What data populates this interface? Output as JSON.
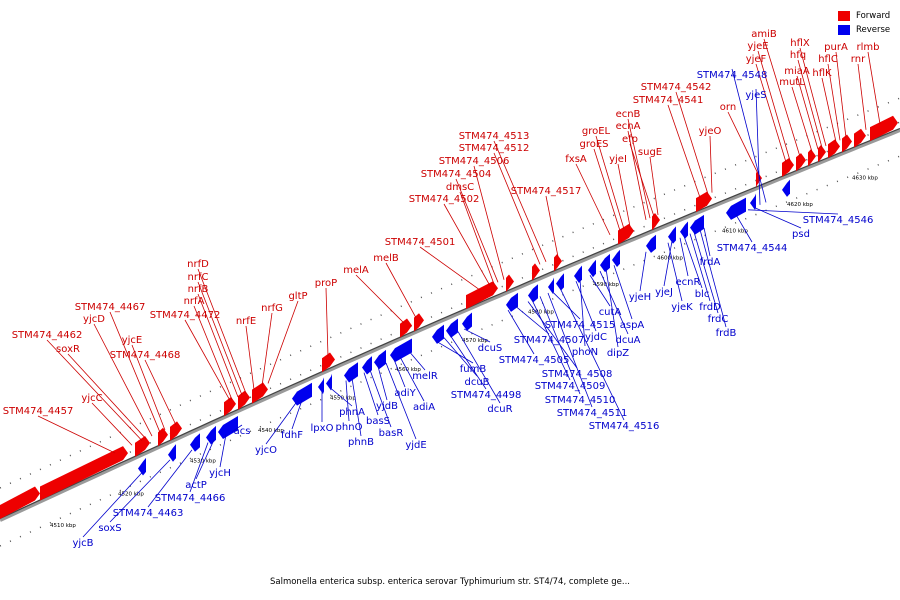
{
  "caption": "Salmonella enterica subsp. enterica serovar Typhimurium str. ST4/74, complete ge...",
  "legend": {
    "forward_label": "Forward",
    "forward_color": "#ee0000",
    "reverse_label": "Reverse",
    "reverse_color": "#0000ee"
  },
  "ticks": [
    "4510 kbp",
    "4520 kbp",
    "4530 kbp",
    "4540 kbp",
    "4550 kbp",
    "4560 kbp",
    "4570 kbp",
    "4580 kbp",
    "4590 kbp",
    "4600 kbp",
    "4610 kbp",
    "4620 kbp",
    "4630 kbp"
  ],
  "forward_genes": [
    "STM474_4457",
    "yjcC",
    "STM474_4462",
    "soxR",
    "yjcD",
    "STM474_4467",
    "yjcE",
    "STM474_4468",
    "STM474_4472",
    "nrfA",
    "nrfB",
    "nrfC",
    "nrfD",
    "nrfE",
    "nrfG",
    "gltP",
    "proP",
    "melA",
    "melB",
    "STM474_4501",
    "STM474_4502",
    "dmsC",
    "STM474_4504",
    "STM474_4506",
    "STM474_4512",
    "STM474_4513",
    "STM474_4517",
    "fxsA",
    "groES",
    "groEL",
    "yjeI",
    "sugE",
    "efp",
    "ecnA",
    "ecnB",
    "STM474_4541",
    "STM474_4542",
    "yjeO",
    "orn",
    "yjeF",
    "yjeE",
    "amiB",
    "mutL",
    "miaA",
    "hfq",
    "hflX",
    "hflK",
    "hflC",
    "purA",
    "rnr",
    "rlmb"
  ],
  "reverse_genes": [
    "yjcB",
    "soxS",
    "STM474_4463",
    "STM474_4466",
    "actP",
    "yjcH",
    "acs",
    "yjcO",
    "fdhF",
    "lpxO",
    "phnA",
    "phnO",
    "phnB",
    "basS",
    "basR",
    "yjdB",
    "yjdE",
    "adiY",
    "adiA",
    "melR",
    "fumB",
    "dcuB",
    "STM474_4498",
    "dcuR",
    "dcuS",
    "STM474_4505",
    "STM474_4507",
    "STM474_4508",
    "STM474_4509",
    "STM474_4510",
    "STM474_4511",
    "STM474_4515",
    "STM474_4516",
    "yjdC",
    "phoN",
    "cutA",
    "dcuA",
    "dipZ",
    "aspA",
    "yjeH",
    "yjeK",
    "yjeJ",
    "ecnR",
    "blc",
    "frdD",
    "frdC",
    "frdB",
    "frdA",
    "STM474_4544",
    "STM474_4546",
    "psd",
    "yjeS",
    "STM474_4548"
  ]
}
